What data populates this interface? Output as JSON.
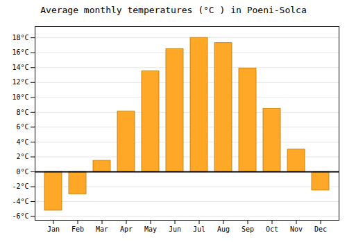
{
  "chart_data": {
    "type": "bar",
    "title": "Average monthly temperatures (°C ) in Poeni-Solca",
    "categories": [
      "Jan",
      "Feb",
      "Mar",
      "Apr",
      "May",
      "Jun",
      "Jul",
      "Aug",
      "Sep",
      "Oct",
      "Nov",
      "Dec"
    ],
    "values": [
      -5.2,
      -3.0,
      1.5,
      8.1,
      13.5,
      16.5,
      18.0,
      17.3,
      13.9,
      8.5,
      3.0,
      -2.5
    ],
    "color": "#FFA828",
    "ylim": [
      -6.5,
      19.5
    ],
    "yticks": [
      {
        "value": -6,
        "label": "-6°C"
      },
      {
        "value": -4,
        "label": "-4°C"
      },
      {
        "value": -2,
        "label": "-2°C"
      },
      {
        "value": 0,
        "label": "0°C"
      },
      {
        "value": 2,
        "label": "2°C"
      },
      {
        "value": 4,
        "label": "4°C"
      },
      {
        "value": 6,
        "label": "6°C"
      },
      {
        "value": 8,
        "label": "8°C"
      },
      {
        "value": 10,
        "label": "10°C"
      },
      {
        "value": 12,
        "label": "12°C"
      },
      {
        "value": 14,
        "label": "14°C"
      },
      {
        "value": 16,
        "label": "16°C"
      },
      {
        "value": 18,
        "label": "18°C"
      }
    ],
    "grid": true
  }
}
